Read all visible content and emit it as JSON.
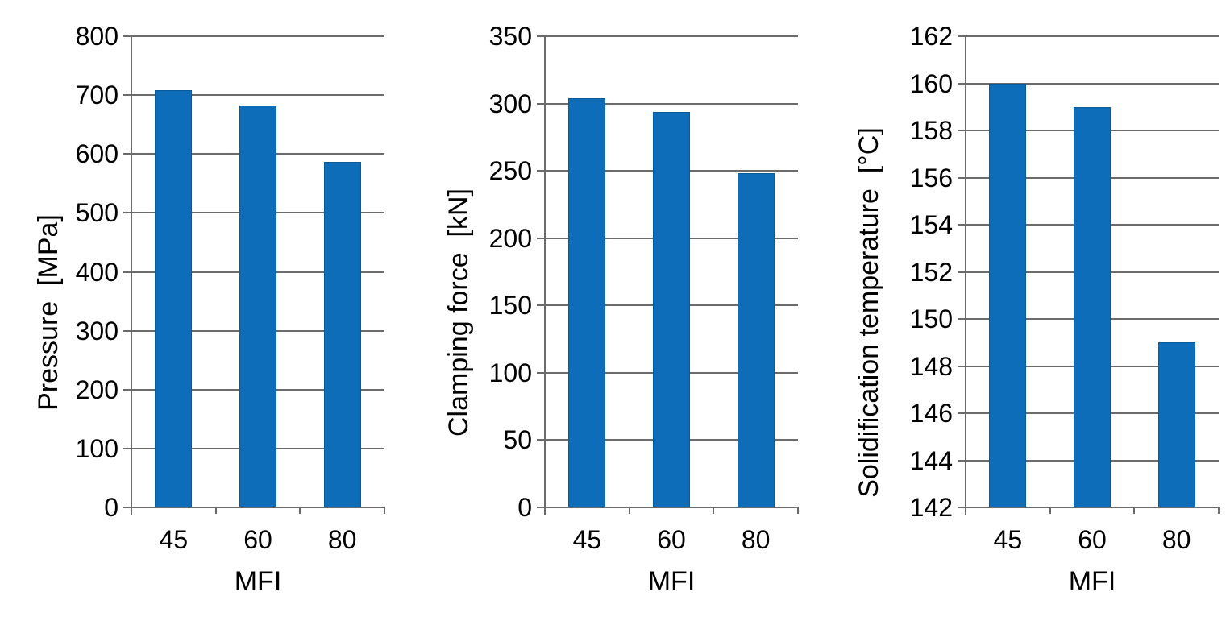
{
  "page": {
    "background": "#ffffff",
    "description": "Three side-by-side bar charts of injection moulding parameters versus MFI"
  },
  "colors": {
    "bar_fill": "#0d6db8",
    "bar_border": "#0a5a99",
    "gridline": "#6b6b6b",
    "axis": "#6b6b6b",
    "text": "#000000"
  },
  "chart_data": [
    {
      "type": "bar",
      "title": "",
      "categories": [
        "45",
        "60",
        "80"
      ],
      "values": [
        709,
        682,
        586
      ],
      "xlabel": "MFI",
      "ylabel": "Pressure  [MPa]",
      "ylim": [
        0,
        800
      ],
      "ytick_step": 100,
      "grid": true,
      "legend": "none"
    },
    {
      "type": "bar",
      "title": "",
      "categories": [
        "45",
        "60",
        "80"
      ],
      "values": [
        304,
        294,
        248
      ],
      "xlabel": "MFI",
      "ylabel": "Clamping force  [kN]",
      "ylim": [
        0,
        350
      ],
      "ytick_step": 50,
      "grid": true,
      "legend": "none"
    },
    {
      "type": "bar",
      "title": "",
      "categories": [
        "45",
        "60",
        "80"
      ],
      "values": [
        160,
        159,
        149
      ],
      "xlabel": "MFI",
      "ylabel": "Solidification temperature  [°C]",
      "ylim": [
        142,
        162
      ],
      "ytick_step": 2,
      "grid": true,
      "legend": "none"
    }
  ]
}
